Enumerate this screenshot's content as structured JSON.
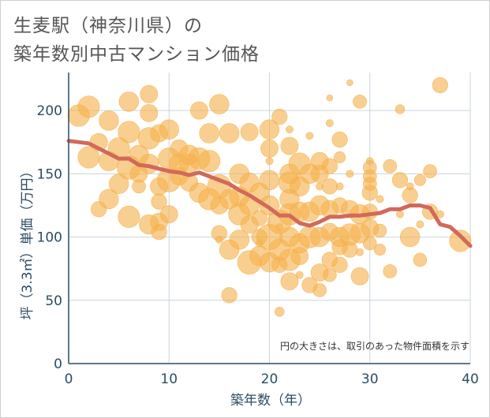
{
  "title_line1": "生麦駅（神奈川県）の",
  "title_line2": "築年数別中古マンション価格",
  "chart_data": {
    "type": "scatter",
    "xlabel": "築年数（年）",
    "ylabel": "坪（3.3㎡）単価（万円）",
    "xlim": [
      0,
      40
    ],
    "ylim": [
      0,
      230
    ],
    "xticks": [
      0,
      10,
      20,
      30,
      40
    ],
    "yticks": [
      0,
      50,
      100,
      150,
      200
    ],
    "grid": true,
    "note": "円の大きさは、取引のあった物件面積を示す",
    "colors": {
      "bubble": "#f5b24e",
      "trend": "#d2695a",
      "grid": "#c9d6e0",
      "text": "#2b4d63"
    },
    "bubbles": [
      [
        1,
        196,
        0.9
      ],
      [
        2,
        203,
        0.9
      ],
      [
        2,
        163,
        0.9
      ],
      [
        3,
        122,
        0.6
      ],
      [
        3,
        175,
        0.7
      ],
      [
        4,
        192,
        0.8
      ],
      [
        4,
        130,
        0.8
      ],
      [
        4,
        160,
        0.8
      ],
      [
        5,
        142,
        0.8
      ],
      [
        5,
        170,
        0.9
      ],
      [
        6,
        207,
        0.8
      ],
      [
        6,
        183,
        0.9
      ],
      [
        6,
        155,
        1.0
      ],
      [
        6,
        116,
        0.9
      ],
      [
        7,
        165,
        0.8
      ],
      [
        7,
        150,
        0.7
      ],
      [
        7,
        140,
        0.5
      ],
      [
        8,
        213,
        0.7
      ],
      [
        8,
        198,
        0.7
      ],
      [
        8,
        178,
        0.9
      ],
      [
        8,
        158,
        0.8
      ],
      [
        8,
        110,
        0.8
      ],
      [
        9,
        182,
        0.7
      ],
      [
        9,
        140,
        0.7
      ],
      [
        9,
        128,
        0.6
      ],
      [
        9,
        112,
        0.7
      ],
      [
        9,
        104,
        0.6
      ],
      [
        10,
        185,
        0.8
      ],
      [
        10,
        162,
        0.9
      ],
      [
        10,
        145,
        1.0
      ],
      [
        10,
        118,
        0.7
      ],
      [
        11,
        170,
        0.7
      ],
      [
        11,
        158,
        0.8
      ],
      [
        11,
        148,
        0.7
      ],
      [
        12,
        165,
        0.8
      ],
      [
        12,
        158,
        0.8
      ],
      [
        12,
        143,
        0.7
      ],
      [
        13,
        200,
        0.7
      ],
      [
        13,
        162,
        0.9
      ],
      [
        13,
        135,
        0.8
      ],
      [
        14,
        182,
        0.8
      ],
      [
        14,
        160,
        0.9
      ],
      [
        14,
        130,
        0.9
      ],
      [
        15,
        205,
        0.8
      ],
      [
        15,
        140,
        1.0
      ],
      [
        15,
        125,
        0.7
      ],
      [
        15,
        103,
        0.6
      ],
      [
        16,
        182,
        0.8
      ],
      [
        16,
        130,
        0.8
      ],
      [
        16,
        90,
        0.8
      ],
      [
        16,
        54,
        0.6
      ],
      [
        17,
        150,
        0.8
      ],
      [
        17,
        132,
        0.8
      ],
      [
        17,
        118,
        0.9
      ],
      [
        17,
        98,
        0.8
      ],
      [
        18,
        183,
        0.7
      ],
      [
        18,
        143,
        0.8
      ],
      [
        18,
        125,
        0.8
      ],
      [
        18,
        110,
        0.7
      ],
      [
        18,
        80,
        1.0
      ],
      [
        19,
        135,
        0.8
      ],
      [
        19,
        115,
        0.6
      ],
      [
        19,
        100,
        0.6
      ],
      [
        19,
        85,
        0.8
      ],
      [
        20,
        185,
        0.8
      ],
      [
        20,
        170,
        0.7
      ],
      [
        20,
        145,
        0.8
      ],
      [
        20,
        125,
        0.8
      ],
      [
        20,
        100,
        1.1
      ],
      [
        20,
        80,
        0.8
      ],
      [
        21,
        195,
        0.6
      ],
      [
        21,
        112,
        1.0
      ],
      [
        21,
        90,
        0.9
      ],
      [
        21,
        78,
        0.6
      ],
      [
        21,
        41,
        0.3
      ],
      [
        22,
        172,
        0.7
      ],
      [
        22,
        150,
        0.8
      ],
      [
        22,
        143,
        0.9
      ],
      [
        22,
        130,
        0.8
      ],
      [
        22,
        118,
        0.9
      ],
      [
        22,
        100,
        0.8
      ],
      [
        22,
        82,
        0.9
      ],
      [
        22,
        65,
        0.7
      ],
      [
        23,
        158,
        0.9
      ],
      [
        23,
        140,
        0.8
      ],
      [
        23,
        120,
        0.8
      ],
      [
        23,
        95,
        0.8
      ],
      [
        23,
        85,
        0.7
      ],
      [
        24,
        150,
        0.8
      ],
      [
        24,
        120,
        0.8
      ],
      [
        24,
        100,
        0.9
      ],
      [
        24,
        62,
        0.6
      ],
      [
        25,
        160,
        0.7
      ],
      [
        25,
        150,
        0.7
      ],
      [
        25,
        125,
        0.8
      ],
      [
        25,
        100,
        0.8
      ],
      [
        25,
        72,
        0.7
      ],
      [
        25,
        58,
        0.5
      ],
      [
        26,
        156,
        0.6
      ],
      [
        26,
        140,
        0.6
      ],
      [
        26,
        122,
        0.7
      ],
      [
        26,
        104,
        0.7
      ],
      [
        26,
        82,
        0.6
      ],
      [
        26,
        70,
        0.5
      ],
      [
        27,
        177,
        0.6
      ],
      [
        27,
        163,
        0.4
      ],
      [
        27,
        125,
        0.6
      ],
      [
        27,
        100,
        0.8
      ],
      [
        27,
        92,
        0.6
      ],
      [
        27,
        78,
        0.6
      ],
      [
        28,
        122,
        0.7
      ],
      [
        28,
        102,
        0.9
      ],
      [
        28,
        90,
        0.6
      ],
      [
        29,
        207,
        0.5
      ],
      [
        29,
        118,
        0.8
      ],
      [
        29,
        103,
        0.8
      ],
      [
        29,
        69,
        0.7
      ],
      [
        30,
        155,
        0.5
      ],
      [
        30,
        148,
        0.5
      ],
      [
        30,
        142,
        0.5
      ],
      [
        30,
        135,
        0.6
      ],
      [
        30,
        120,
        0.6
      ],
      [
        30,
        107,
        0.7
      ],
      [
        30,
        95,
        0.5
      ],
      [
        31,
        105,
        0.5
      ],
      [
        31,
        90,
        0.4
      ],
      [
        32,
        156,
        0.5
      ],
      [
        32,
        73,
        0.5
      ],
      [
        33,
        145,
        0.6
      ],
      [
        33,
        201,
        0.3
      ],
      [
        34,
        133,
        0.6
      ],
      [
        34,
        100,
        0.8
      ],
      [
        35,
        145,
        0.4
      ],
      [
        35,
        82,
        0.5
      ],
      [
        36,
        152,
        0.5
      ],
      [
        36,
        120,
        0.6
      ],
      [
        37,
        220,
        0.6
      ],
      [
        39,
        97,
        0.9
      ],
      [
        26,
        190,
        0.2
      ],
      [
        26,
        210,
        0.15
      ],
      [
        28,
        222,
        0.15
      ],
      [
        31,
        130,
        0.2
      ],
      [
        22,
        185,
        0.2
      ],
      [
        20,
        160,
        0.2
      ],
      [
        25,
        140,
        0.2
      ],
      [
        30,
        160,
        0.2
      ],
      [
        33,
        118,
        0.2
      ],
      [
        35,
        110,
        0.2
      ],
      [
        27,
        140,
        0.2
      ],
      [
        24,
        180,
        0.2
      ],
      [
        19,
        95,
        0.2
      ],
      [
        23,
        70,
        0.2
      ],
      [
        21,
        108,
        0.2
      ],
      [
        15,
        98,
        0.2
      ],
      [
        34,
        140,
        0.2
      ],
      [
        37,
        118,
        0.2
      ],
      [
        29,
        88,
        0.2
      ],
      [
        28,
        150,
        0.2
      ]
    ],
    "trend": {
      "x": [
        0,
        1,
        2,
        3,
        4,
        5,
        6,
        7,
        8,
        9,
        10,
        11,
        12,
        13,
        14,
        15,
        16,
        17,
        18,
        19,
        20,
        21,
        22,
        23,
        24,
        25,
        26,
        27,
        28,
        29,
        30,
        31,
        32,
        33,
        34,
        35,
        36,
        37,
        38,
        39,
        40
      ],
      "y": [
        176,
        175,
        174,
        170,
        166,
        162,
        162,
        157,
        156,
        154,
        152,
        151,
        149,
        151,
        148,
        145,
        142,
        137,
        133,
        128,
        123,
        117,
        117,
        111,
        109,
        112,
        116,
        116,
        117,
        117,
        118,
        119,
        122,
        122,
        125,
        125,
        123,
        110,
        108,
        101,
        93
      ]
    }
  }
}
